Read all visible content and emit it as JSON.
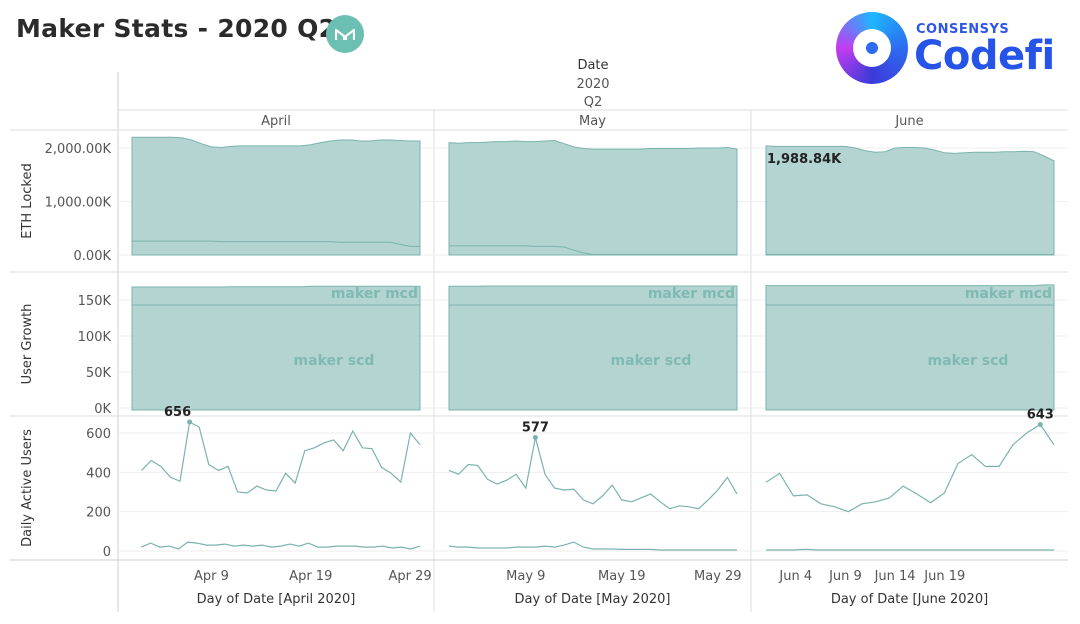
{
  "title": "Maker Stats - 2020 Q2",
  "brand": {
    "small": "CONSENSYS",
    "name": "Codefi",
    "maker_logo": "maker-m-logo-icon",
    "codefi_logo": "codefi-ring-logo-icon"
  },
  "colors": {
    "fill": "#b4d4d2",
    "line": "#7ab3ad",
    "text_on_fill": "#7fbab2",
    "title": "#2b2b2b"
  },
  "header": {
    "field": "Date",
    "year": "2020",
    "quarter": "Q2"
  },
  "chart_data": {
    "type": "area",
    "columns": [
      {
        "month": "April",
        "xlabel": "Day of Date [April 2020]",
        "days": 30,
        "ticks": [
          {
            "day": 9,
            "label": "Apr 9"
          },
          {
            "day": 19,
            "label": "Apr 19"
          },
          {
            "day": 29,
            "label": "Apr 29"
          }
        ]
      },
      {
        "month": "May",
        "xlabel": "Day of Date [May 2020]",
        "days": 31,
        "ticks": [
          {
            "day": 9,
            "label": "May 9"
          },
          {
            "day": 19,
            "label": "May 19"
          },
          {
            "day": 29,
            "label": "May 29"
          }
        ]
      },
      {
        "month": "June",
        "xlabel": "Day of Date [June 2020]",
        "days": 30,
        "ticks": [
          {
            "day": 4,
            "label": "Jun 4"
          },
          {
            "day": 9,
            "label": "Jun 9"
          },
          {
            "day": 14,
            "label": "Jun 14"
          },
          {
            "day": 19,
            "label": "Jun 19"
          }
        ]
      }
    ],
    "rows": [
      {
        "ylabel": "ETH Locked",
        "ylim": [
          0,
          2300000
        ],
        "yticks": [
          {
            "v": 0,
            "label": "0.00K"
          },
          {
            "v": 1000000,
            "label": "1,000.00K"
          },
          {
            "v": 2000000,
            "label": "2,000.00K"
          }
        ],
        "series": [
          {
            "name": "maker mcd",
            "values": [
              [
                2200000,
                2200000,
                2200000,
                2200000,
                2200000,
                2190000,
                2150000,
                2080000,
                2020000,
                2010000,
                2030000,
                2040000,
                2040000,
                2040000,
                2040000,
                2040000,
                2040000,
                2040000,
                2060000,
                2100000,
                2130000,
                2150000,
                2150000,
                2130000,
                2130000,
                2150000,
                2150000,
                2140000,
                2130000,
                2130000
              ],
              [
                2100000,
                2090000,
                2100000,
                2100000,
                2110000,
                2120000,
                2120000,
                2130000,
                2120000,
                2120000,
                2130000,
                2140000,
                2080000,
                2020000,
                1990000,
                1980000,
                1980000,
                1980000,
                1980000,
                1980000,
                1980000,
                1990000,
                1990000,
                1990000,
                1990000,
                1990000,
                2000000,
                2000000,
                2000000,
                2010000,
                1980000
              ],
              [
                2040000,
                2030000,
                2030000,
                2030000,
                2030000,
                2030000,
                2030000,
                2030000,
                2030000,
                2000000,
                1950000,
                1920000,
                1930000,
                2000000,
                2010000,
                2010000,
                2000000,
                1960000,
                1910000,
                1900000,
                1910000,
                1920000,
                1920000,
                1920000,
                1930000,
                1930000,
                1940000,
                1930000,
                1850000,
                1760000
              ]
            ]
          },
          {
            "name": "maker scd",
            "values": [
              [
                260000,
                260000,
                260000,
                260000,
                260000,
                260000,
                260000,
                260000,
                260000,
                250000,
                250000,
                250000,
                250000,
                250000,
                250000,
                250000,
                250000,
                250000,
                250000,
                250000,
                250000,
                240000,
                240000,
                240000,
                240000,
                240000,
                240000,
                200000,
                160000,
                160000
              ],
              [
                170000,
                170000,
                170000,
                170000,
                170000,
                170000,
                170000,
                170000,
                170000,
                160000,
                160000,
                160000,
                150000,
                90000,
                40000,
                10000,
                10000,
                10000,
                10000,
                10000,
                10000,
                10000,
                10000,
                10000,
                10000,
                10000,
                10000,
                10000,
                10000,
                10000,
                10000
              ],
              [
                10000,
                10000,
                10000,
                10000,
                10000,
                10000,
                10000,
                10000,
                10000,
                10000,
                10000,
                10000,
                10000,
                10000,
                10000,
                10000,
                10000,
                10000,
                10000,
                10000,
                10000,
                10000,
                10000,
                10000,
                10000,
                10000,
                10000,
                10000,
                10000,
                10000
              ]
            ]
          }
        ],
        "annotations": [
          {
            "col": 2,
            "text": "1,988.84K"
          }
        ]
      },
      {
        "ylabel": "User Growth",
        "ylim": [
          0,
          170000
        ],
        "yticks": [
          {
            "v": 0,
            "label": "0K"
          },
          {
            "v": 50000,
            "label": "50K"
          },
          {
            "v": 100000,
            "label": "100K"
          },
          {
            "v": 150000,
            "label": "150K"
          }
        ],
        "series": [
          {
            "name": "maker mcd",
            "values": [
              [
                168000,
                168000,
                168000,
                168000,
                168000,
                168000,
                168000,
                168000,
                168000,
                168000,
                168500,
                168500,
                168500,
                168500,
                168500,
                168500,
                168500,
                168500,
                169000,
                169000,
                169000,
                169000,
                169000,
                169000,
                169000,
                169000,
                169000,
                169000,
                169000,
                169000
              ],
              [
                169000,
                169000,
                169000,
                169000,
                169500,
                169500,
                169500,
                169500,
                169500,
                169500,
                169500,
                169500,
                169500,
                169500,
                169500,
                169500,
                169500,
                169500,
                169500,
                169500,
                169500,
                169500,
                169500,
                169500,
                169500,
                169500,
                169500,
                169500,
                169500,
                169500,
                169500
              ],
              [
                170000,
                170000,
                170000,
                170000,
                170000,
                170000,
                170000,
                170000,
                170000,
                170000,
                170000,
                170000,
                170000,
                170000,
                170000,
                170000,
                170000,
                170000,
                170000,
                170000,
                170000,
                170000,
                170000,
                170000,
                170000,
                170000,
                170000,
                170000,
                171000,
                171000
              ]
            ]
          },
          {
            "name": "maker scd",
            "values": [
              [
                143000,
                143000,
                143000,
                143000,
                143000,
                143000,
                143000,
                143000,
                143000,
                143000,
                143000,
                143000,
                143000,
                143000,
                143000,
                143000,
                143000,
                143000,
                143000,
                143000,
                143000,
                143000,
                143000,
                143000,
                143000,
                143000,
                143000,
                143000,
                143000,
                143000
              ],
              [
                143000,
                143000,
                143000,
                143000,
                143000,
                143000,
                143000,
                143000,
                143000,
                143000,
                143000,
                143000,
                143000,
                143000,
                143000,
                143000,
                143000,
                143000,
                143000,
                143000,
                143000,
                143000,
                143000,
                143000,
                143000,
                143000,
                143000,
                143000,
                143000,
                143000,
                143000
              ],
              [
                143000,
                143000,
                143000,
                143000,
                143000,
                143000,
                143000,
                143000,
                143000,
                143000,
                143000,
                143000,
                143000,
                143000,
                143000,
                143000,
                143000,
                143000,
                143000,
                143000,
                143000,
                143000,
                143000,
                143000,
                143000,
                143000,
                143000,
                143000,
                143000,
                143000
              ]
            ]
          }
        ],
        "labels": [
          "maker mcd",
          "maker scd"
        ]
      },
      {
        "ylabel": "Daily Active Users",
        "ylim": [
          0,
          680
        ],
        "yticks": [
          {
            "v": 0,
            "label": "0"
          },
          {
            "v": 200,
            "label": "200"
          },
          {
            "v": 400,
            "label": "400"
          },
          {
            "v": 600,
            "label": "600"
          }
        ],
        "series": [
          {
            "name": "maker mcd",
            "values": [
              [
                null,
                410,
                460,
                430,
                375,
                355,
                656,
                630,
                440,
                410,
                430,
                300,
                295,
                330,
                310,
                305,
                395,
                345,
                510,
                525,
                550,
                565,
                510,
                610,
                525,
                520,
                425,
                395,
                350,
                600,
                540
              ],
              [
                410,
                390,
                440,
                435,
                365,
                340,
                360,
                390,
                320,
                577,
                390,
                320,
                310,
                315,
                260,
                240,
                280,
                335,
                260,
                250,
                270,
                290,
                250,
                215,
                230,
                225,
                215,
                260,
                310,
                375,
                290
              ],
              [
                350,
                395,
                280,
                285,
                240,
                225,
                200,
                240,
                250,
                270,
                330,
                290,
                245,
                295,
                445,
                490,
                430,
                430,
                540,
                600,
                643,
                540
              ]
            ]
          },
          {
            "name": "maker scd",
            "values": [
              [
                null,
                20,
                40,
                20,
                25,
                10,
                45,
                40,
                30,
                30,
                35,
                25,
                30,
                25,
                30,
                20,
                25,
                35,
                25,
                40,
                20,
                20,
                25,
                25,
                25,
                20,
                20,
                25,
                15,
                20,
                10,
                25
              ],
              [
                25,
                20,
                20,
                15,
                15,
                15,
                15,
                20,
                20,
                20,
                25,
                20,
                30,
                45,
                20,
                10,
                10,
                10,
                8,
                8,
                8,
                8,
                5,
                5,
                5,
                5,
                5,
                5,
                5,
                5,
                5
              ],
              [
                5,
                5,
                5,
                8,
                5,
                5,
                5,
                5,
                5,
                5,
                5,
                5,
                5,
                5,
                5,
                5,
                5,
                5,
                5,
                5,
                5,
                5,
                5
              ]
            ]
          }
        ],
        "annotations": [
          {
            "col": 0,
            "text": "656"
          },
          {
            "col": 1,
            "text": "577"
          },
          {
            "col": 2,
            "text": "643"
          }
        ]
      }
    ]
  }
}
